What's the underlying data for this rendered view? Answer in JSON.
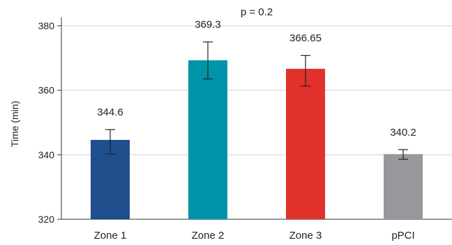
{
  "chart_data": {
    "type": "bar",
    "title": "",
    "annotation": "p = 0.2",
    "xlabel": "",
    "ylabel": "Time (min)",
    "ylim": [
      320,
      380
    ],
    "yticks": [
      320,
      340,
      360,
      380
    ],
    "grid": true,
    "categories": [
      "Zone 1",
      "Zone 2",
      "Zone 3",
      "pPCI"
    ],
    "values": [
      344.6,
      369.3,
      366.65,
      340.2
    ],
    "data_labels": [
      "344.6",
      "369.3",
      "366.65",
      "340.2"
    ],
    "error_bars": [
      {
        "low": 340.2,
        "high": 347.8
      },
      {
        "low": 363.5,
        "high": 375.0
      },
      {
        "low": 361.3,
        "high": 370.8
      },
      {
        "low": 338.6,
        "high": 341.6
      }
    ],
    "colors": [
      "#1f4e8c",
      "#0094aa",
      "#e0322b",
      "#97989b"
    ]
  }
}
